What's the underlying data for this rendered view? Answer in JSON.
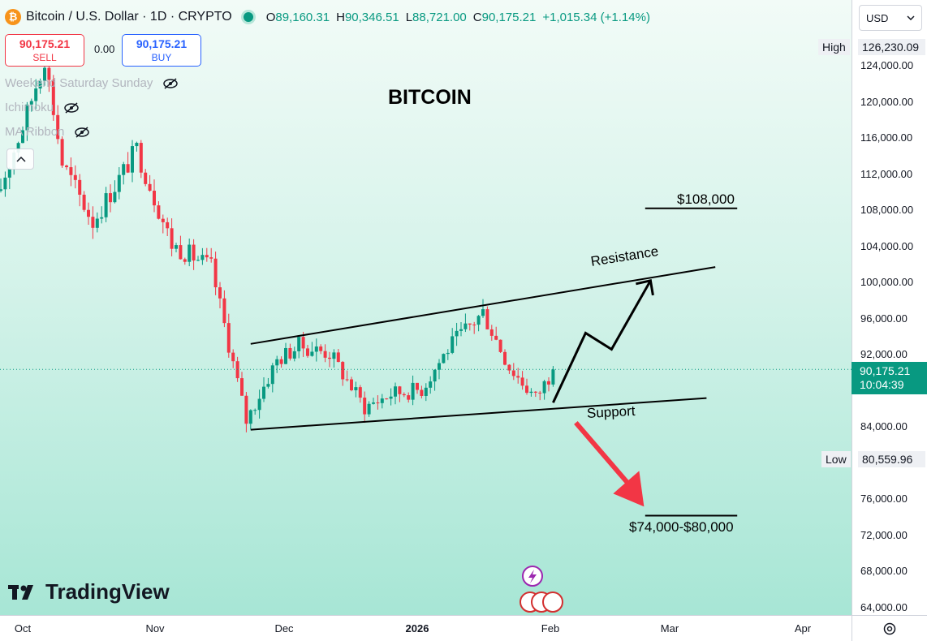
{
  "header": {
    "symbol": "Bitcoin / U.S. Dollar · 1D · CRYPTO",
    "logo_glyph": "₿",
    "open_label": "O",
    "open": "89,160.31",
    "high_label": "H",
    "high": "90,346.51",
    "low_label": "L",
    "low": "88,721.00",
    "close_label": "C",
    "close": "90,175.21",
    "change": "+1,015.34 (+1.14%)"
  },
  "trade": {
    "sell_price": "90,175.21",
    "sell_label": "SELL",
    "spread": "0.00",
    "buy_price": "90,175.21",
    "buy_label": "BUY"
  },
  "indicators": [
    {
      "label": "Weekend Saturday Sunday",
      "icon": "eye-hidden-icon"
    },
    {
      "label": "Ichimoku",
      "icon": "eye-hidden-icon"
    },
    {
      "label": "MA Ribbon",
      "icon": "eye-hidden-icon"
    }
  ],
  "currency": "USD",
  "price_scale": {
    "ticks": [
      "124,000.00",
      "120,000.00",
      "116,000.00",
      "112,000.00",
      "108,000.00",
      "104,000.00",
      "100,000.00",
      "96,000.00",
      "92,000.00",
      "84,000.00",
      "76,000.00",
      "72,000.00",
      "68,000.00",
      "64,000.00"
    ],
    "high_tag": "High",
    "high_value": "126,230.09",
    "low_tag": "Low",
    "low_value": "80,559.96",
    "current_price": "90,175.21",
    "countdown": "10:04:39"
  },
  "time_scale": {
    "labels": [
      "Oct",
      "Nov",
      "Dec",
      "2026",
      "Feb",
      "Mar",
      "Apr"
    ]
  },
  "annotations": {
    "title": "BITCOIN",
    "resistance": "Resistance",
    "support": "Support",
    "target_high": "$108,000",
    "target_low": "$74,000-$80,000"
  },
  "branding": "TradingView",
  "colors": {
    "up": "#089981",
    "down": "#f23645",
    "background_top": "#f2fbf7",
    "background_bottom": "#a7e6d5",
    "arrow_bear": "#f23645",
    "line": "#000000"
  },
  "chart_data": {
    "type": "candlestick",
    "title": "BITCOIN",
    "symbol": "BTCUSD",
    "timeframe": "1D",
    "ylim": [
      64000,
      128000
    ],
    "x_axis_labels": [
      "Oct",
      "Nov",
      "Dec",
      "2026",
      "Feb",
      "Mar",
      "Apr"
    ],
    "close_path": [
      {
        "date": "2025-09-25",
        "close": 109000
      },
      {
        "date": "2025-10-02",
        "close": 118500
      },
      {
        "date": "2025-10-06",
        "close": 124800
      },
      {
        "date": "2025-10-10",
        "close": 113000
      },
      {
        "date": "2025-10-17",
        "close": 106500
      },
      {
        "date": "2025-10-27",
        "close": 114500
      },
      {
        "date": "2025-11-04",
        "close": 104000
      },
      {
        "date": "2025-11-13",
        "close": 101500
      },
      {
        "date": "2025-11-21",
        "close": 84500
      },
      {
        "date": "2025-11-28",
        "close": 91200
      },
      {
        "date": "2025-12-03",
        "close": 92800
      },
      {
        "date": "2025-12-10",
        "close": 92000
      },
      {
        "date": "2025-12-18",
        "close": 86000
      },
      {
        "date": "2025-12-24",
        "close": 87500
      },
      {
        "date": "2025-12-31",
        "close": 88000
      },
      {
        "date": "2026-01-06",
        "close": 92500
      },
      {
        "date": "2026-01-14",
        "close": 96500
      },
      {
        "date": "2026-01-20",
        "close": 90500
      },
      {
        "date": "2026-01-26",
        "close": 87000
      },
      {
        "date": "2026-01-30",
        "close": 90175.21
      }
    ],
    "current_price": 90175.21,
    "period_high": 126230.09,
    "period_low": 80559.96,
    "lines": [
      {
        "name": "Resistance",
        "from": {
          "date": "2025-11-22",
          "price": 93000
        },
        "to": {
          "date": "2026-03-08",
          "price": 101500
        }
      },
      {
        "name": "Support",
        "from": {
          "date": "2025-11-22",
          "price": 83500
        },
        "to": {
          "date": "2026-03-06",
          "price": 87000
        }
      },
      {
        "name": "$108,000",
        "from": {
          "date": "2026-02-20",
          "price": 108000
        },
        "to": {
          "date": "2026-03-13",
          "price": 108000
        }
      },
      {
        "name": "$74,000-$80,000",
        "from": {
          "date": "2026-02-20",
          "price": 74000
        },
        "to": {
          "date": "2026-03-13",
          "price": 74000
        }
      }
    ],
    "scenarios": [
      {
        "direction": "bullish",
        "from_price": 86500,
        "to_price": 100000
      },
      {
        "direction": "bearish",
        "from_price": 85000,
        "to_price": 75000
      }
    ]
  }
}
